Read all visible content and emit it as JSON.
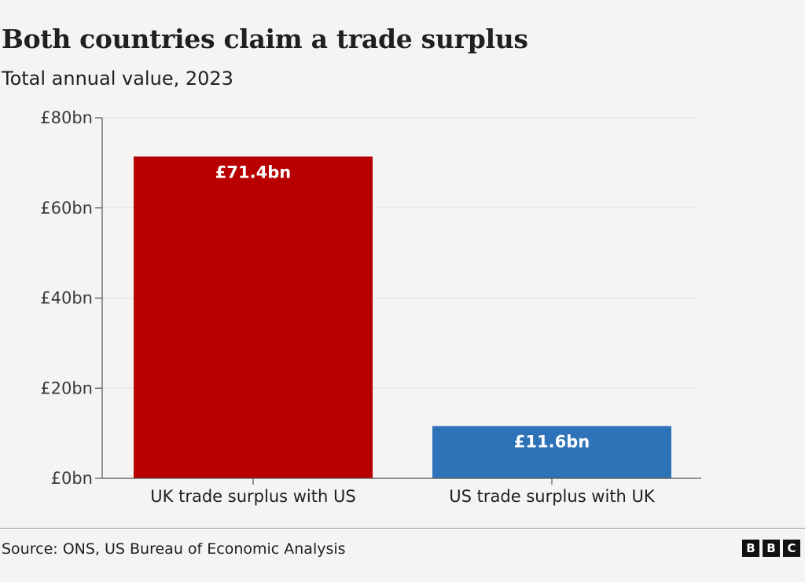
{
  "chart_data": {
    "type": "bar",
    "title": "Both countries claim a trade surplus",
    "subtitle": "Total annual value, 2023",
    "categories": [
      "UK trade surplus with US",
      "US trade surplus with UK"
    ],
    "values": [
      71.4,
      11.6
    ],
    "value_labels": [
      "£71.4bn",
      "£11.6bn"
    ],
    "colors": [
      "#b80000",
      "#2e72b8"
    ],
    "ylim": [
      0,
      80
    ],
    "yticks": [
      0,
      20,
      40,
      60,
      80
    ],
    "ytick_labels": [
      "£0bn",
      "£20bn",
      "£40bn",
      "£60bn",
      "£80bn"
    ],
    "xlabel": "",
    "ylabel": "",
    "grid": true
  },
  "footer": {
    "source": "Source: ONS, US Bureau of Economic Analysis",
    "logo_letters": [
      "B",
      "B",
      "C"
    ]
  }
}
